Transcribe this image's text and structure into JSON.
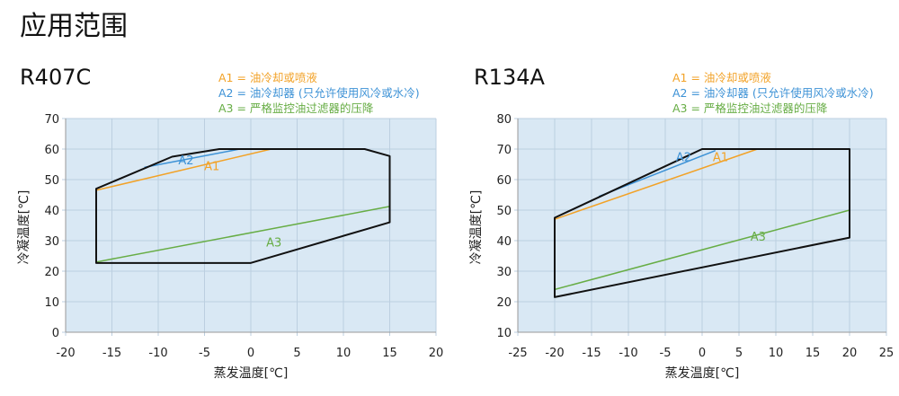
{
  "page_title": "应用范围",
  "colors": {
    "a1": "#f2a227",
    "a2": "#3d92d6",
    "a3": "#67ad45",
    "envelope": "#111111",
    "plot_bg": "#d9e8f4",
    "grid": "#bccfe0"
  },
  "chart_data": [
    {
      "type": "line",
      "title": "R407C",
      "xlabel": "蒸发温度[℃]",
      "ylabel": "冷凝温度[℃]",
      "xlim": [
        -20,
        20
      ],
      "ylim": [
        0,
        70
      ],
      "xticks": [
        -20,
        -15,
        -10,
        -5,
        0,
        5,
        10,
        15,
        20
      ],
      "yticks": [
        0,
        10,
        20,
        30,
        40,
        50,
        60,
        70
      ],
      "grid": true,
      "legend": [
        {
          "text": "A1 = 油冷却或喷液",
          "color": "#f2a227"
        },
        {
          "text": "A2 = 油冷却器 (只允许使用风冷或水冷)",
          "color": "#3d92d6"
        },
        {
          "text": "A3 = 严格监控油过滤器的压降",
          "color": "#67ad45"
        }
      ],
      "legend_position": "top-right",
      "envelope": [
        [
          -16.7,
          47
        ],
        [
          -8.5,
          57.5
        ],
        [
          -3.4,
          60
        ],
        [
          12.3,
          60
        ],
        [
          15,
          57.7
        ],
        [
          15,
          36
        ],
        [
          0,
          22.7
        ],
        [
          -16.7,
          22.7
        ]
      ],
      "series": [
        {
          "name": "A1",
          "color": "#f2a227",
          "points": [
            [
              -16.7,
              46.5
            ],
            [
              2.2,
              60
            ]
          ],
          "label_at": [
            -4.2,
            54.5
          ]
        },
        {
          "name": "A2",
          "color": "#3d92d6",
          "points": [
            [
              -11.5,
              54
            ],
            [
              -1.2,
              60
            ]
          ],
          "label_at": [
            -7,
            56.5
          ]
        },
        {
          "name": "A3",
          "color": "#67ad45",
          "points": [
            [
              -16.7,
              23
            ],
            [
              15,
              41.2
            ]
          ],
          "label_at": [
            2.5,
            29.5
          ]
        }
      ]
    },
    {
      "type": "line",
      "title": "R134A",
      "xlabel": "蒸发温度[℃]",
      "ylabel": "冷凝温度[℃]",
      "xlim": [
        -25,
        25
      ],
      "ylim": [
        10,
        80
      ],
      "xticks": [
        -25,
        -20,
        -15,
        -10,
        -5,
        0,
        5,
        10,
        15,
        20,
        25
      ],
      "yticks": [
        10,
        20,
        30,
        40,
        50,
        60,
        70,
        80
      ],
      "grid": true,
      "legend": [
        {
          "text": "A1 = 油冷却或喷液",
          "color": "#f2a227"
        },
        {
          "text": "A2 = 油冷却器 (只允许使用风冷或水冷)",
          "color": "#3d92d6"
        },
        {
          "text": "A3 = 严格监控油过滤器的压降",
          "color": "#67ad45"
        }
      ],
      "legend_position": "top-right",
      "envelope": [
        [
          -20,
          47.5
        ],
        [
          0,
          70
        ],
        [
          20,
          70
        ],
        [
          20,
          41
        ],
        [
          -20,
          21.5
        ]
      ],
      "series": [
        {
          "name": "A1",
          "color": "#f2a227",
          "points": [
            [
              -20,
              47
            ],
            [
              7.5,
              70
            ]
          ],
          "label_at": [
            2.5,
            67.5
          ]
        },
        {
          "name": "A2",
          "color": "#3d92d6",
          "points": [
            [
              -14,
              54.5
            ],
            [
              1.8,
              69.5
            ]
          ],
          "label_at": [
            -2.5,
            67.5
          ]
        },
        {
          "name": "A3",
          "color": "#67ad45",
          "points": [
            [
              -20,
              24
            ],
            [
              20,
              50
            ]
          ],
          "label_at": [
            7.6,
            41.5
          ]
        }
      ]
    }
  ]
}
